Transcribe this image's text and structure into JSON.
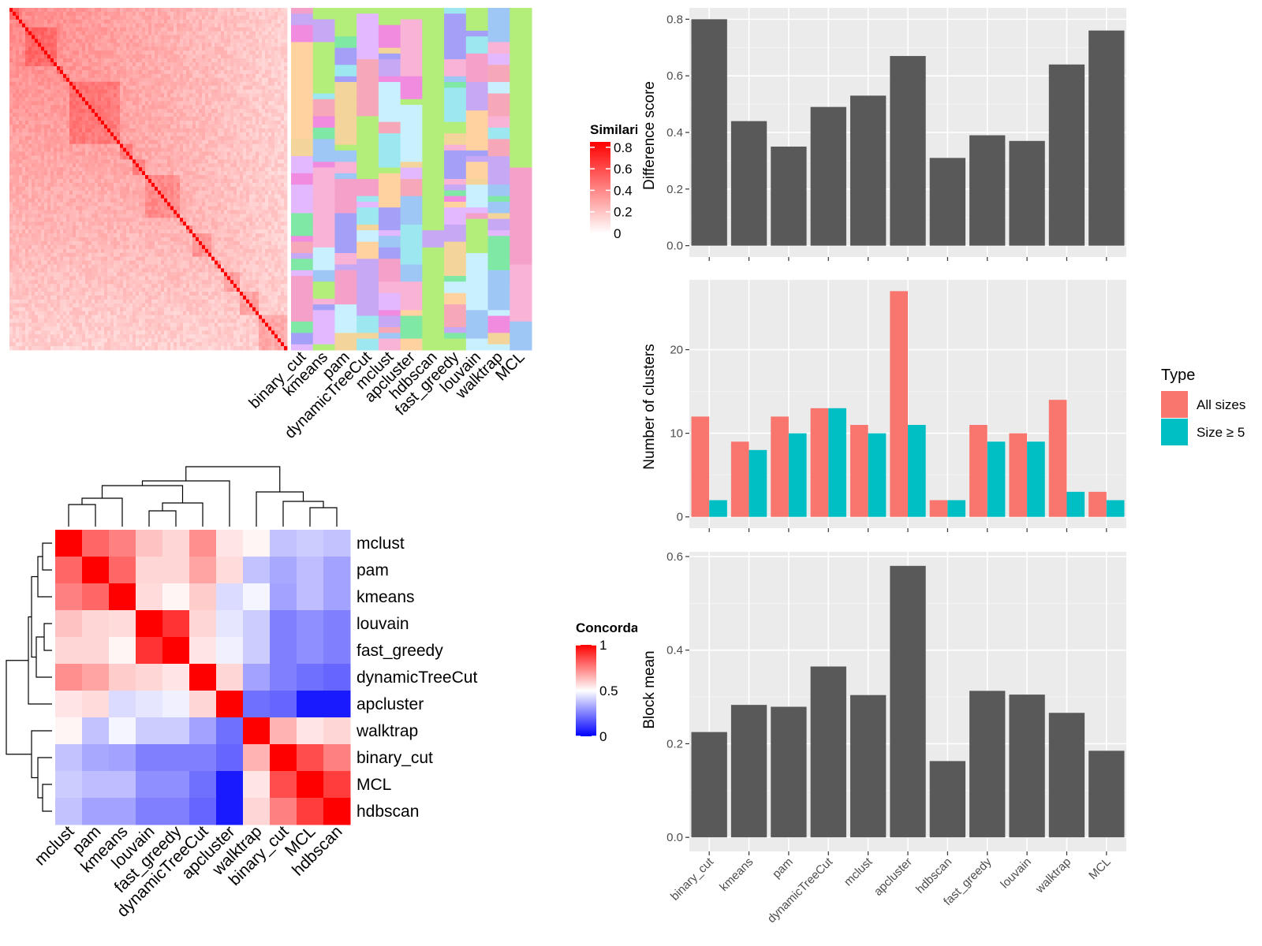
{
  "colors": {
    "similarity_low": "#ffffff",
    "similarity_high": "#ff0000",
    "concordance_low": "#0000ff",
    "concordance_mid": "#ffffff",
    "concordance_high": "#ff0000",
    "panel_bg": "#ebebeb",
    "grid": "#ffffff",
    "bar_dark": "#595959",
    "all_sizes": "#f8766d",
    "size_ge5": "#00bfc4",
    "cluster_palette": [
      "#b3ee7a",
      "#f8b3d6",
      "#f5a0c8",
      "#f3d59b",
      "#9fc7f5",
      "#c6a8f5",
      "#7fe8a5",
      "#f08be0",
      "#a5a0f7",
      "#c9f0ff",
      "#f7a8b8",
      "#9de8f0",
      "#e3b8ff",
      "#ffd2a0"
    ]
  },
  "chart_data": [
    {
      "id": "similarity-heatmap",
      "type": "heatmap",
      "legend_title": "Similarity",
      "legend_ticks": [
        "0.8",
        "0.6",
        "0.4",
        "0.2",
        "0"
      ],
      "legend_range": [
        0,
        0.85
      ]
    },
    {
      "id": "cluster-assignments",
      "type": "heatmap",
      "columns": [
        "binary_cut",
        "kmeans",
        "pam",
        "dynamicTreeCut",
        "mclust",
        "apcluster",
        "hdbscan",
        "fast_greedy",
        "louvain",
        "walktrap",
        "MCL"
      ]
    },
    {
      "id": "concordance-heatmap",
      "type": "heatmap",
      "legend_title": "Concordance",
      "legend_ticks": [
        "1",
        "0.5",
        "0"
      ],
      "rows": [
        "mclust",
        "pam",
        "kmeans",
        "louvain",
        "fast_greedy",
        "dynamicTreeCut",
        "apcluster",
        "walktrap",
        "binary_cut",
        "MCL",
        "hdbscan"
      ],
      "columns": [
        "mclust",
        "pam",
        "kmeans",
        "louvain",
        "fast_greedy",
        "dynamicTreeCut",
        "apcluster",
        "walktrap",
        "binary_cut",
        "MCL",
        "hdbscan"
      ],
      "values": [
        [
          1.0,
          0.8,
          0.75,
          0.62,
          0.58,
          0.72,
          0.55,
          0.52,
          0.38,
          0.4,
          0.38
        ],
        [
          0.8,
          1.0,
          0.8,
          0.58,
          0.58,
          0.68,
          0.57,
          0.38,
          0.33,
          0.37,
          0.32
        ],
        [
          0.75,
          0.8,
          1.0,
          0.57,
          0.52,
          0.6,
          0.43,
          0.48,
          0.32,
          0.37,
          0.32
        ],
        [
          0.62,
          0.58,
          0.57,
          1.0,
          0.9,
          0.58,
          0.45,
          0.4,
          0.25,
          0.28,
          0.25
        ],
        [
          0.58,
          0.58,
          0.52,
          0.9,
          1.0,
          0.55,
          0.47,
          0.4,
          0.25,
          0.28,
          0.25
        ],
        [
          0.72,
          0.68,
          0.6,
          0.58,
          0.55,
          1.0,
          0.58,
          0.32,
          0.25,
          0.22,
          0.2
        ],
        [
          0.55,
          0.57,
          0.43,
          0.45,
          0.47,
          0.58,
          1.0,
          0.22,
          0.2,
          0.05,
          0.05
        ],
        [
          0.52,
          0.38,
          0.48,
          0.4,
          0.4,
          0.32,
          0.22,
          1.0,
          0.65,
          0.55,
          0.58
        ],
        [
          0.38,
          0.33,
          0.32,
          0.25,
          0.25,
          0.25,
          0.2,
          0.65,
          1.0,
          0.85,
          0.75
        ],
        [
          0.4,
          0.37,
          0.37,
          0.28,
          0.28,
          0.22,
          0.05,
          0.55,
          0.85,
          1.0,
          0.88
        ],
        [
          0.38,
          0.32,
          0.32,
          0.25,
          0.25,
          0.2,
          0.05,
          0.58,
          0.75,
          0.88,
          1.0
        ]
      ]
    },
    {
      "id": "difference-score",
      "type": "bar",
      "categories": [
        "binary_cut",
        "kmeans",
        "pam",
        "dynamicTreeCut",
        "mclust",
        "apcluster",
        "hdbscan",
        "fast_greedy",
        "louvain",
        "walktrap",
        "MCL"
      ],
      "values": [
        0.8,
        0.44,
        0.35,
        0.49,
        0.53,
        0.67,
        0.31,
        0.39,
        0.37,
        0.64,
        0.76
      ],
      "ylabel": "Difference score",
      "yticks": [
        "0.0",
        "0.2",
        "0.4",
        "0.6",
        "0.8"
      ],
      "ylim": [
        -0.04,
        0.84
      ]
    },
    {
      "id": "number-of-clusters",
      "type": "bar",
      "categories": [
        "binary_cut",
        "kmeans",
        "pam",
        "dynamicTreeCut",
        "mclust",
        "apcluster",
        "hdbscan",
        "fast_greedy",
        "louvain",
        "walktrap",
        "MCL"
      ],
      "series": [
        {
          "name": "All sizes",
          "values": [
            12,
            9,
            12,
            13,
            11,
            27,
            2,
            11,
            10,
            14,
            3
          ]
        },
        {
          "name": "Size ≥ 5",
          "values": [
            2,
            8,
            10,
            13,
            10,
            11,
            2,
            9,
            9,
            3,
            2
          ]
        }
      ],
      "ylabel": "Number of clusters",
      "yticks": [
        "0",
        "10",
        "20"
      ],
      "ylim": [
        -1.35,
        28.35
      ],
      "legend_title": "Type",
      "legend_position": "right"
    },
    {
      "id": "block-mean",
      "type": "bar",
      "categories": [
        "binary_cut",
        "kmeans",
        "pam",
        "dynamicTreeCut",
        "mclust",
        "apcluster",
        "hdbscan",
        "fast_greedy",
        "louvain",
        "walktrap",
        "MCL"
      ],
      "values": [
        0.225,
        0.283,
        0.279,
        0.365,
        0.304,
        0.58,
        0.163,
        0.313,
        0.305,
        0.266,
        0.185
      ],
      "ylabel": "Block mean",
      "yticks": [
        "0.0",
        "0.2",
        "0.4",
        "0.6"
      ],
      "ylim": [
        -0.03,
        0.61
      ]
    }
  ]
}
